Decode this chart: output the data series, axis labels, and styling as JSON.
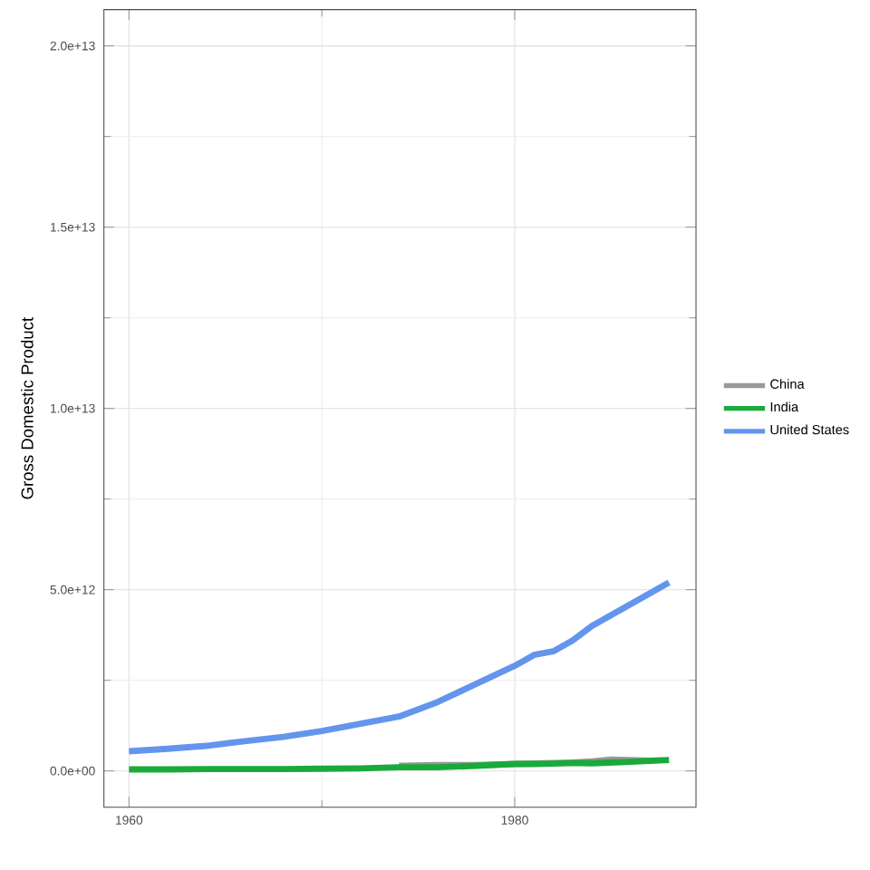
{
  "chart_data": {
    "type": "line",
    "ylabel": "Gross Domestic Product",
    "x": [
      1960,
      1962,
      1964,
      1966,
      1968,
      1970,
      1972,
      1974,
      1976,
      1978,
      1980,
      1981,
      1982,
      1983,
      1984,
      1985,
      1986,
      1987,
      1988
    ],
    "series": [
      {
        "name": "China",
        "color": "#999999",
        "values": [
          null,
          null,
          null,
          null,
          null,
          null,
          null,
          140000000000.0,
          160000000000.0,
          160000000000.0,
          190000000000.0,
          null,
          null,
          230000000000.0,
          260000000000.0,
          310000000000.0,
          300000000000.0,
          280000000000.0,
          null
        ]
      },
      {
        "name": "India",
        "color": "#1aaa3c",
        "values": [
          40000000000.0,
          40000000000.0,
          50000000000.0,
          50000000000.0,
          50000000000.0,
          60000000000.0,
          70000000000.0,
          100000000000.0,
          100000000000.0,
          140000000000.0,
          190000000000.0,
          190000000000.0,
          200000000000.0,
          220000000000.0,
          210000000000.0,
          230000000000.0,
          250000000000.0,
          280000000000.0,
          300000000000.0
        ]
      },
      {
        "name": "United States",
        "color": "#6495ed",
        "values": [
          540000000000.0,
          610000000000.0,
          690000000000.0,
          820000000000.0,
          940000000000.0,
          1100000000000.0,
          1300000000000.0,
          1500000000000.0,
          1900000000000.0,
          2400000000000.0,
          2900000000000.0,
          3200000000000.0,
          3300000000000.0,
          3600000000000.0,
          4000000000000.0,
          4300000000000.0,
          4600000000000.0,
          4900000000000.0,
          5200000000000.0
        ]
      }
    ],
    "xlim": [
      1958.7,
      1989.4
    ],
    "ylim": [
      -1000000000000.0,
      21000000000000.0
    ],
    "xticks": [
      1960,
      1980
    ],
    "yticks": [
      {
        "value": 0,
        "label": "0.0e+00"
      },
      {
        "value": 5000000000000.0,
        "label": "5.0e+12"
      },
      {
        "value": 10000000000000.0,
        "label": "1.0e+13"
      },
      {
        "value": 15000000000000.0,
        "label": "1.5e+13"
      },
      {
        "value": 20000000000000.0,
        "label": "2.0e+13"
      }
    ],
    "grid": true,
    "legend": "right",
    "marker": "none",
    "line_style": "solid"
  }
}
